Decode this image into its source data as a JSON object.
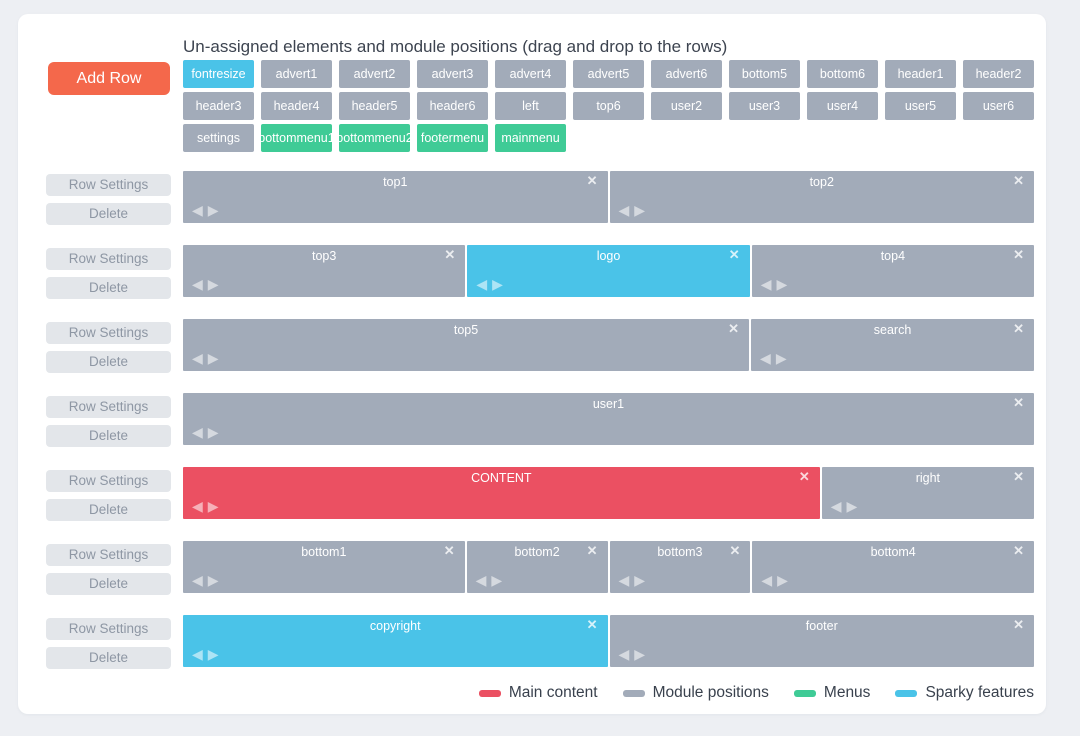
{
  "page": {
    "title": "Un-assigned elements and module positions (drag and drop to the rows)"
  },
  "toolbar": {
    "add_row_label": "Add Row"
  },
  "row_controls": {
    "settings_label": "Row Settings",
    "delete_label": "Delete"
  },
  "colors": {
    "main_content": "#eb5062",
    "module_position": "#a2abb9",
    "menu": "#3fcb96",
    "sparky_feature": "#4ac3e8",
    "add_row_button": "#f4684b"
  },
  "icons": {
    "close": "✕",
    "move_left": "◀",
    "move_right": "▶"
  },
  "unassigned_chips": [
    [
      {
        "label": "fontresize",
        "type": "sparky_feature"
      },
      {
        "label": "advert1",
        "type": "module_position"
      },
      {
        "label": "advert2",
        "type": "module_position"
      },
      {
        "label": "advert3",
        "type": "module_position"
      },
      {
        "label": "advert4",
        "type": "module_position"
      },
      {
        "label": "advert5",
        "type": "module_position"
      },
      {
        "label": "advert6",
        "type": "module_position"
      },
      {
        "label": "bottom5",
        "type": "module_position"
      },
      {
        "label": "bottom6",
        "type": "module_position"
      },
      {
        "label": "header1",
        "type": "module_position"
      },
      {
        "label": "header2",
        "type": "module_position"
      }
    ],
    [
      {
        "label": "header3",
        "type": "module_position"
      },
      {
        "label": "header4",
        "type": "module_position"
      },
      {
        "label": "header5",
        "type": "module_position"
      },
      {
        "label": "header6",
        "type": "module_position"
      },
      {
        "label": "left",
        "type": "module_position"
      },
      {
        "label": "top6",
        "type": "module_position"
      },
      {
        "label": "user2",
        "type": "module_position"
      },
      {
        "label": "user3",
        "type": "module_position"
      },
      {
        "label": "user4",
        "type": "module_position"
      },
      {
        "label": "user5",
        "type": "module_position"
      },
      {
        "label": "user6",
        "type": "module_position"
      }
    ],
    [
      {
        "label": "settings",
        "type": "module_position"
      },
      {
        "label": "bottommenu1",
        "type": "menu"
      },
      {
        "label": "bottommenu2",
        "type": "menu"
      },
      {
        "label": "footermenu",
        "type": "menu"
      },
      {
        "label": "mainmenu",
        "type": "menu"
      }
    ]
  ],
  "rows": [
    {
      "blocks": [
        {
          "label": "top1",
          "type": "module_position",
          "width_pct": 50
        },
        {
          "label": "top2",
          "type": "module_position",
          "width_pct": 50
        }
      ]
    },
    {
      "blocks": [
        {
          "label": "top3",
          "type": "module_position",
          "width_pct": 33.33
        },
        {
          "label": "logo",
          "type": "sparky_feature",
          "width_pct": 33.34
        },
        {
          "label": "top4",
          "type": "module_position",
          "width_pct": 33.33
        }
      ]
    },
    {
      "blocks": [
        {
          "label": "top5",
          "type": "module_position",
          "width_pct": 66.67
        },
        {
          "label": "search",
          "type": "module_position",
          "width_pct": 33.33
        }
      ]
    },
    {
      "blocks": [
        {
          "label": "user1",
          "type": "module_position",
          "width_pct": 100
        }
      ]
    },
    {
      "blocks": [
        {
          "label": "CONTENT",
          "type": "main_content",
          "width_pct": 75
        },
        {
          "label": "right",
          "type": "module_position",
          "width_pct": 25
        }
      ]
    },
    {
      "blocks": [
        {
          "label": "bottom1",
          "type": "module_position",
          "width_pct": 33.33
        },
        {
          "label": "bottom2",
          "type": "module_position",
          "width_pct": 16.67
        },
        {
          "label": "bottom3",
          "type": "module_position",
          "width_pct": 16.67
        },
        {
          "label": "bottom4",
          "type": "module_position",
          "width_pct": 33.33
        }
      ]
    },
    {
      "blocks": [
        {
          "label": "copyright",
          "type": "sparky_feature",
          "width_pct": 50
        },
        {
          "label": "footer",
          "type": "module_position",
          "width_pct": 50
        }
      ]
    }
  ],
  "legend": [
    {
      "label": "Main content",
      "type": "main_content"
    },
    {
      "label": "Module positions",
      "type": "module_position"
    },
    {
      "label": "Menus",
      "type": "menu"
    },
    {
      "label": "Sparky features",
      "type": "sparky_feature"
    }
  ]
}
